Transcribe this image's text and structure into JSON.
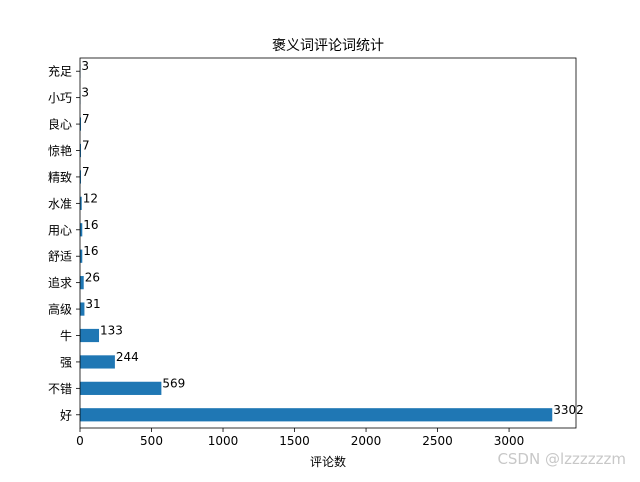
{
  "chart_data": {
    "type": "bar",
    "orientation": "horizontal",
    "title": "褒义词评论词统计",
    "xlabel": "评论数",
    "ylabel": "",
    "categories": [
      "好",
      "不错",
      "强",
      "牛",
      "高级",
      "追求",
      "舒适",
      "用心",
      "水准",
      "精致",
      "惊艳",
      "良心",
      "小巧",
      "充足"
    ],
    "values": [
      3302,
      569,
      244,
      133,
      31,
      26,
      16,
      16,
      12,
      7,
      7,
      7,
      3,
      3
    ],
    "xlim": [
      0,
      3468
    ],
    "xticks": [
      0,
      500,
      1000,
      1500,
      2000,
      2500,
      3000
    ],
    "bar_color": "#1f77b4",
    "grid": false,
    "data_labels": true
  },
  "watermark": "CSDN @lzzzzzzm"
}
